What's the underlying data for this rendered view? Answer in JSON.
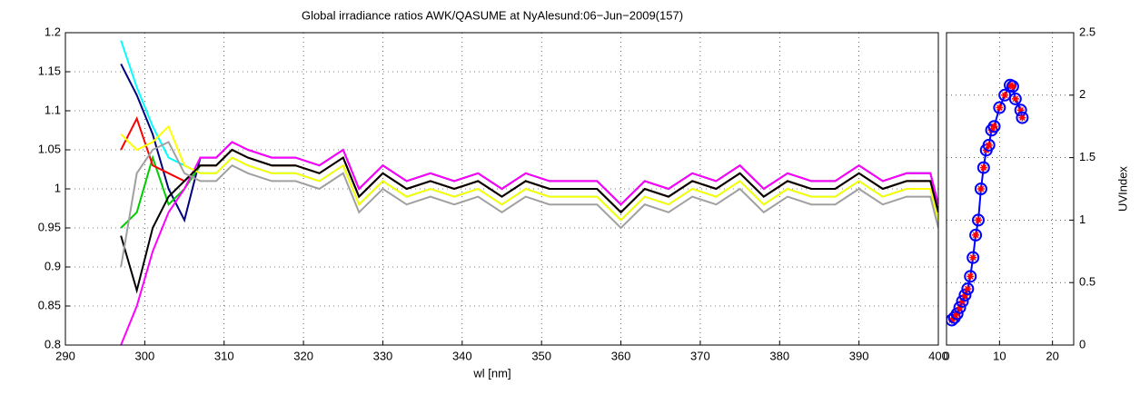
{
  "chart_data": [
    {
      "type": "line",
      "title": "Global irradiance ratios AWK/QASUME at NyAlesund:06−Jun−2009(157)",
      "x_label": "wl [nm]",
      "x": [
        297,
        299,
        301,
        303,
        305,
        307,
        309,
        311,
        313,
        316,
        319,
        322,
        325,
        327,
        330,
        333,
        336,
        339,
        342,
        345,
        348,
        351,
        354,
        357,
        360,
        363,
        366,
        369,
        372,
        375,
        378,
        381,
        384,
        387,
        390,
        393,
        396,
        399,
        400
      ],
      "xlim": [
        290,
        400
      ],
      "xticks": [
        290,
        300,
        310,
        320,
        330,
        340,
        350,
        360,
        370,
        380,
        390,
        400
      ],
      "ylim": [
        0.8,
        1.2
      ],
      "yticks": [
        0.8,
        0.85,
        0.9,
        0.95,
        1,
        1.05,
        1.1,
        1.15,
        1.2
      ],
      "grid": true,
      "series": [
        {
          "color": "#000080",
          "values": [
            1.16,
            1.12,
            1.07,
            1.0,
            0.96,
            1.04,
            1.04,
            1.06,
            1.05,
            1.04,
            1.04,
            1.03,
            1.05,
            1.0,
            1.03,
            1.01,
            1.02,
            1.01,
            1.02,
            1.0,
            1.02,
            1.01,
            1.01,
            1.01,
            0.98,
            1.01,
            1.0,
            1.02,
            1.01,
            1.03,
            1.0,
            1.02,
            1.01,
            1.01,
            1.03,
            1.01,
            1.02,
            1.02,
            0.98
          ]
        },
        {
          "color": "#00cc00",
          "values": [
            0.95,
            0.97,
            1.04,
            0.98,
            1.0,
            1.03,
            1.03,
            1.05,
            1.04,
            1.03,
            1.03,
            1.02,
            1.04,
            0.99,
            1.02,
            1.0,
            1.01,
            1.0,
            1.01,
            0.99,
            1.01,
            1.0,
            1.0,
            1.0,
            0.97,
            1.0,
            0.99,
            1.01,
            1.0,
            1.02,
            0.99,
            1.01,
            1.0,
            1.0,
            1.02,
            1.0,
            1.01,
            1.01,
            0.97
          ]
        },
        {
          "color": "#ff0000",
          "values": [
            1.05,
            1.09,
            1.03,
            1.02,
            1.01,
            1.03,
            1.03,
            1.05,
            1.04,
            1.03,
            1.03,
            1.02,
            1.04,
            0.99,
            1.02,
            1.0,
            1.01,
            1.0,
            1.01,
            0.99,
            1.01,
            1.0,
            1.0,
            1.0,
            0.97,
            1.0,
            0.99,
            1.01,
            1.0,
            1.02,
            0.99,
            1.01,
            1.0,
            1.0,
            1.02,
            1.0,
            1.01,
            1.01,
            0.97
          ]
        },
        {
          "color": "#00ffff",
          "values": [
            1.19,
            1.13,
            1.08,
            1.04,
            1.03,
            1.02,
            1.02,
            1.04,
            1.03,
            1.02,
            1.02,
            1.01,
            1.03,
            0.98,
            1.01,
            0.99,
            1.0,
            0.99,
            1.0,
            0.98,
            1.0,
            0.99,
            0.99,
            0.99,
            0.96,
            0.99,
            0.98,
            1.0,
            0.99,
            1.01,
            0.98,
            1.0,
            0.99,
            0.99,
            1.01,
            0.99,
            1.0,
            1.0,
            0.96
          ]
        },
        {
          "color": "#ff00ff",
          "values": [
            0.8,
            0.85,
            0.92,
            0.97,
            1.0,
            1.04,
            1.04,
            1.06,
            1.05,
            1.04,
            1.04,
            1.03,
            1.05,
            1.0,
            1.03,
            1.01,
            1.02,
            1.01,
            1.02,
            1.0,
            1.02,
            1.01,
            1.01,
            1.01,
            0.98,
            1.01,
            1.0,
            1.02,
            1.01,
            1.03,
            1.0,
            1.02,
            1.01,
            1.01,
            1.03,
            1.01,
            1.02,
            1.02,
            0.98
          ]
        },
        {
          "color": "#ffff00",
          "values": [
            1.07,
            1.05,
            1.06,
            1.08,
            1.03,
            1.02,
            1.02,
            1.04,
            1.03,
            1.02,
            1.02,
            1.01,
            1.03,
            0.98,
            1.01,
            0.99,
            1.0,
            0.99,
            1.0,
            0.98,
            1.0,
            0.99,
            0.99,
            0.99,
            0.96,
            0.99,
            0.98,
            1.0,
            0.99,
            1.01,
            0.98,
            1.0,
            0.99,
            0.99,
            1.01,
            0.99,
            1.0,
            1.0,
            0.96
          ]
        },
        {
          "color": "#000000",
          "values": [
            0.94,
            0.87,
            0.95,
            0.99,
            1.01,
            1.03,
            1.03,
            1.05,
            1.04,
            1.03,
            1.03,
            1.02,
            1.04,
            0.99,
            1.02,
            1.0,
            1.01,
            1.0,
            1.01,
            0.99,
            1.01,
            1.0,
            1.0,
            1.0,
            0.97,
            1.0,
            0.99,
            1.01,
            1.0,
            1.02,
            0.99,
            1.01,
            1.0,
            1.0,
            1.02,
            1.0,
            1.01,
            1.01,
            0.97
          ]
        },
        {
          "color": "#a0a0a0",
          "values": [
            0.9,
            1.02,
            1.05,
            1.06,
            1.02,
            1.01,
            1.01,
            1.03,
            1.02,
            1.01,
            1.01,
            1.0,
            1.02,
            0.97,
            1.0,
            0.98,
            0.99,
            0.98,
            0.99,
            0.97,
            0.99,
            0.98,
            0.98,
            0.98,
            0.95,
            0.98,
            0.97,
            0.99,
            0.98,
            1.0,
            0.97,
            0.99,
            0.98,
            0.98,
            1.0,
            0.98,
            0.99,
            0.99,
            0.95
          ]
        }
      ]
    },
    {
      "type": "scatter",
      "y_label": "UVIndex",
      "x": [
        1,
        1.5,
        2,
        2.5,
        3,
        3.5,
        4,
        4.5,
        5,
        5.5,
        6,
        6.5,
        7,
        7.5,
        8,
        8.5,
        9,
        10,
        11,
        12,
        12.5,
        13,
        14,
        14.3
      ],
      "xlim": [
        0,
        24
      ],
      "xticks": [
        0,
        10,
        20
      ],
      "ylim": [
        0,
        2.5
      ],
      "yticks": [
        0,
        0.5,
        1,
        1.5,
        2,
        2.5
      ],
      "grid": true,
      "series": [
        {
          "color": "#0000ff",
          "marker_color": "#ff0000",
          "values": [
            0.2,
            0.22,
            0.25,
            0.3,
            0.35,
            0.4,
            0.45,
            0.55,
            0.7,
            0.88,
            1.0,
            1.25,
            1.42,
            1.56,
            1.6,
            1.72,
            1.75,
            1.9,
            2.0,
            2.08,
            2.07,
            1.97,
            1.88,
            1.82
          ]
        }
      ]
    }
  ]
}
